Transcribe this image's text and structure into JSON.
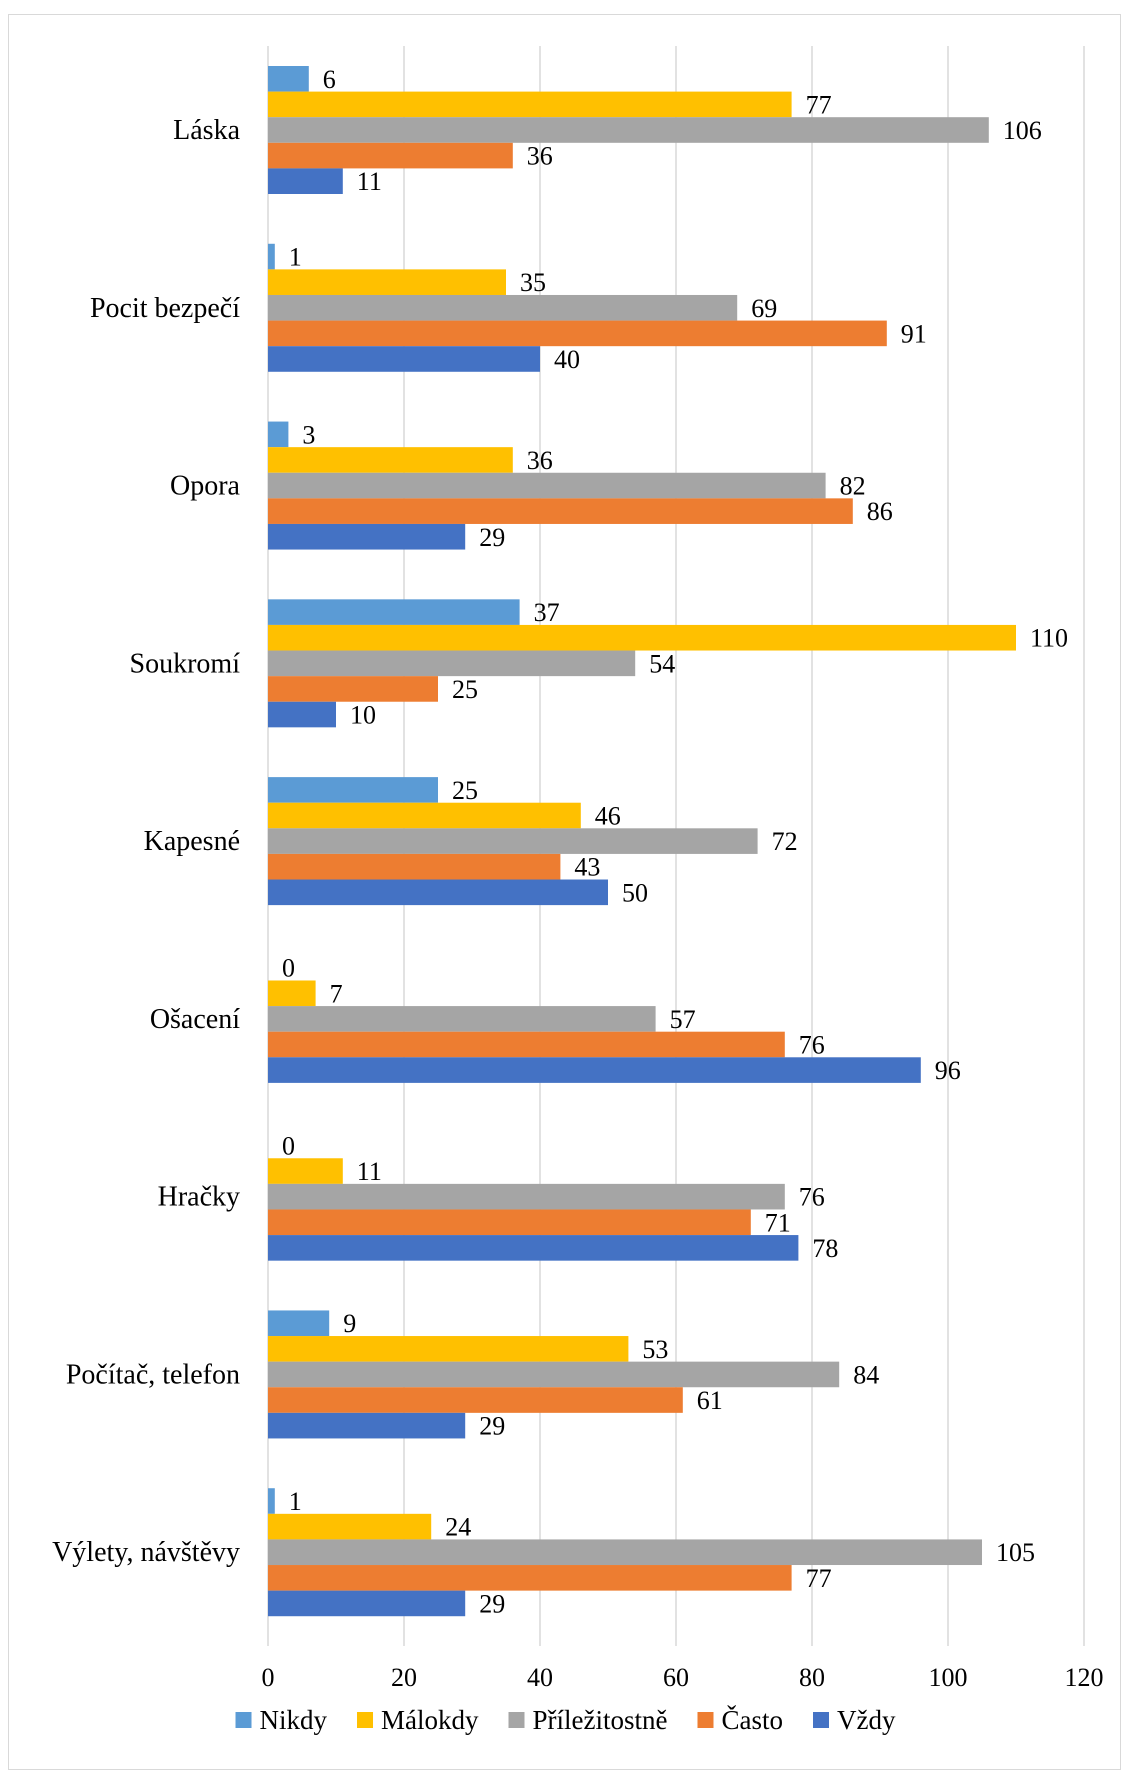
{
  "chart_data": {
    "type": "bar",
    "orientation": "horizontal",
    "categories": [
      "Láska",
      "Pocit bezpečí",
      "Opora",
      "Soukromí",
      "Kapesné",
      "Ošacení",
      "Hračky",
      "Počítač, telefon",
      "Výlety, návštěvy"
    ],
    "series": [
      {
        "name": "Nikdy",
        "color": "#5b9bd5",
        "values": [
          6,
          1,
          3,
          37,
          25,
          0,
          0,
          9,
          1
        ]
      },
      {
        "name": "Málokdy",
        "color": "#ffc000",
        "values": [
          77,
          35,
          36,
          110,
          46,
          7,
          11,
          53,
          24
        ]
      },
      {
        "name": "Příležitostně",
        "color": "#a5a5a5",
        "values": [
          106,
          69,
          82,
          54,
          72,
          57,
          76,
          84,
          105
        ]
      },
      {
        "name": "Často",
        "color": "#ed7d31",
        "values": [
          36,
          91,
          86,
          25,
          43,
          76,
          71,
          61,
          77
        ]
      },
      {
        "name": "Vždy",
        "color": "#4472c4",
        "values": [
          11,
          40,
          29,
          10,
          50,
          96,
          78,
          29,
          29
        ]
      }
    ],
    "xlim": [
      0,
      120
    ],
    "xticks": [
      0,
      20,
      40,
      60,
      80,
      100,
      120
    ],
    "grid": true,
    "legend_position": "bottom"
  }
}
